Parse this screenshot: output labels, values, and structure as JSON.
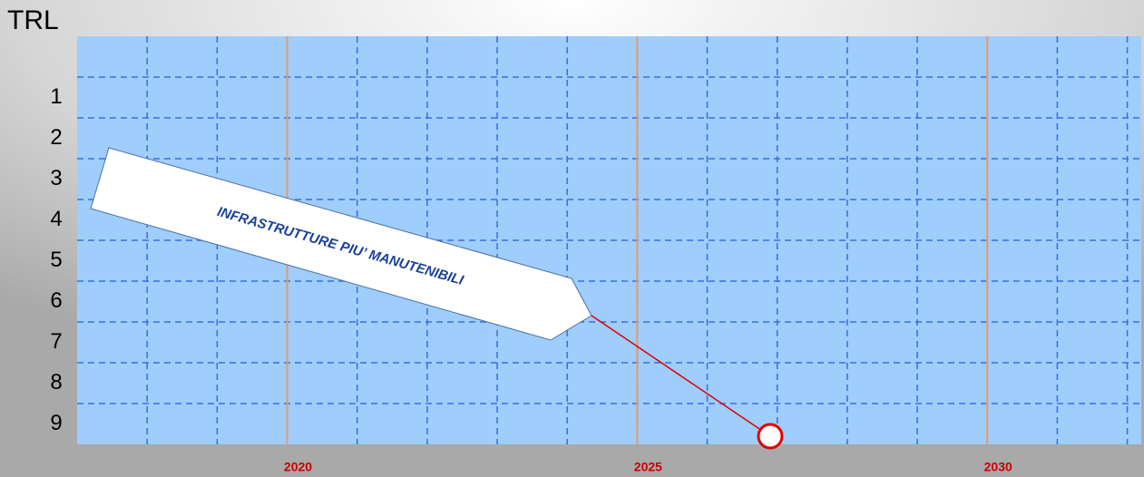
{
  "chart_data": {
    "type": "scatter",
    "y_axis_label": "TRL",
    "annotation": "INFRASTRUTTURE PIU’ MANUTENIBILI",
    "x": [
      2026.9
    ],
    "values": [
      9.3
    ],
    "color": "#e00000",
    "xlim": [
      2017,
      2032.2
    ],
    "xticks": [
      2020,
      2025,
      2030
    ],
    "ylim": [
      -0.5,
      9.5
    ],
    "yticks": [
      1,
      2,
      3,
      4,
      5,
      6,
      7,
      8,
      9
    ],
    "y_inverted": true,
    "grid": true
  }
}
